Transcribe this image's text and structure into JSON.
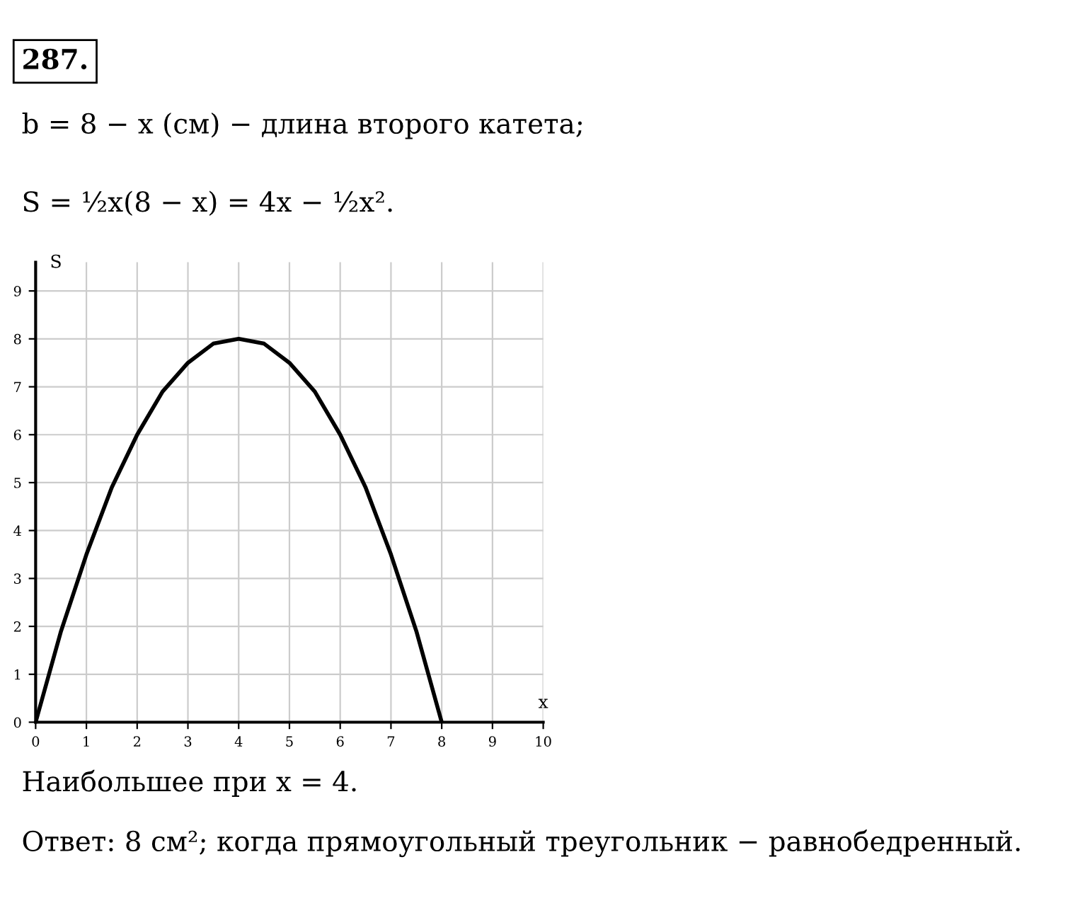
{
  "chart_data": {
    "type": "line",
    "title": "287.",
    "annotations": [
      "b = 8 − x (см) − длина второго катета;",
      "S = ½x(8 − x) = 4x − ½x².",
      "Наибольшее при x = 4.",
      "Ответ: 8 см²; когда прямоугольный треугольник − равнобедренный."
    ],
    "xlabel": "x",
    "ylabel": "S",
    "series": [
      {
        "color": "#000000",
        "x": [
          0,
          0.5,
          1,
          1.5,
          2,
          2.5,
          3,
          3.5,
          4,
          4.5,
          5,
          5.5,
          6,
          6.5,
          7,
          7.5,
          8
        ],
        "values": [
          0,
          1.9,
          3.5,
          4.9,
          6,
          6.9,
          7.5,
          7.9,
          8,
          7.9,
          7.5,
          6.9,
          6,
          4.9,
          3.5,
          1.9,
          0
        ]
      }
    ],
    "xlim": [
      0,
      10
    ],
    "ylim": [
      0,
      9.6
    ],
    "xticks": [
      0,
      1,
      2,
      3,
      4,
      5,
      6,
      7,
      8,
      9,
      10
    ],
    "yticks": [
      0,
      1,
      2,
      3,
      4,
      5,
      6,
      7,
      8,
      9
    ],
    "grid": true,
    "marker": "none",
    "line_style": "solid"
  }
}
